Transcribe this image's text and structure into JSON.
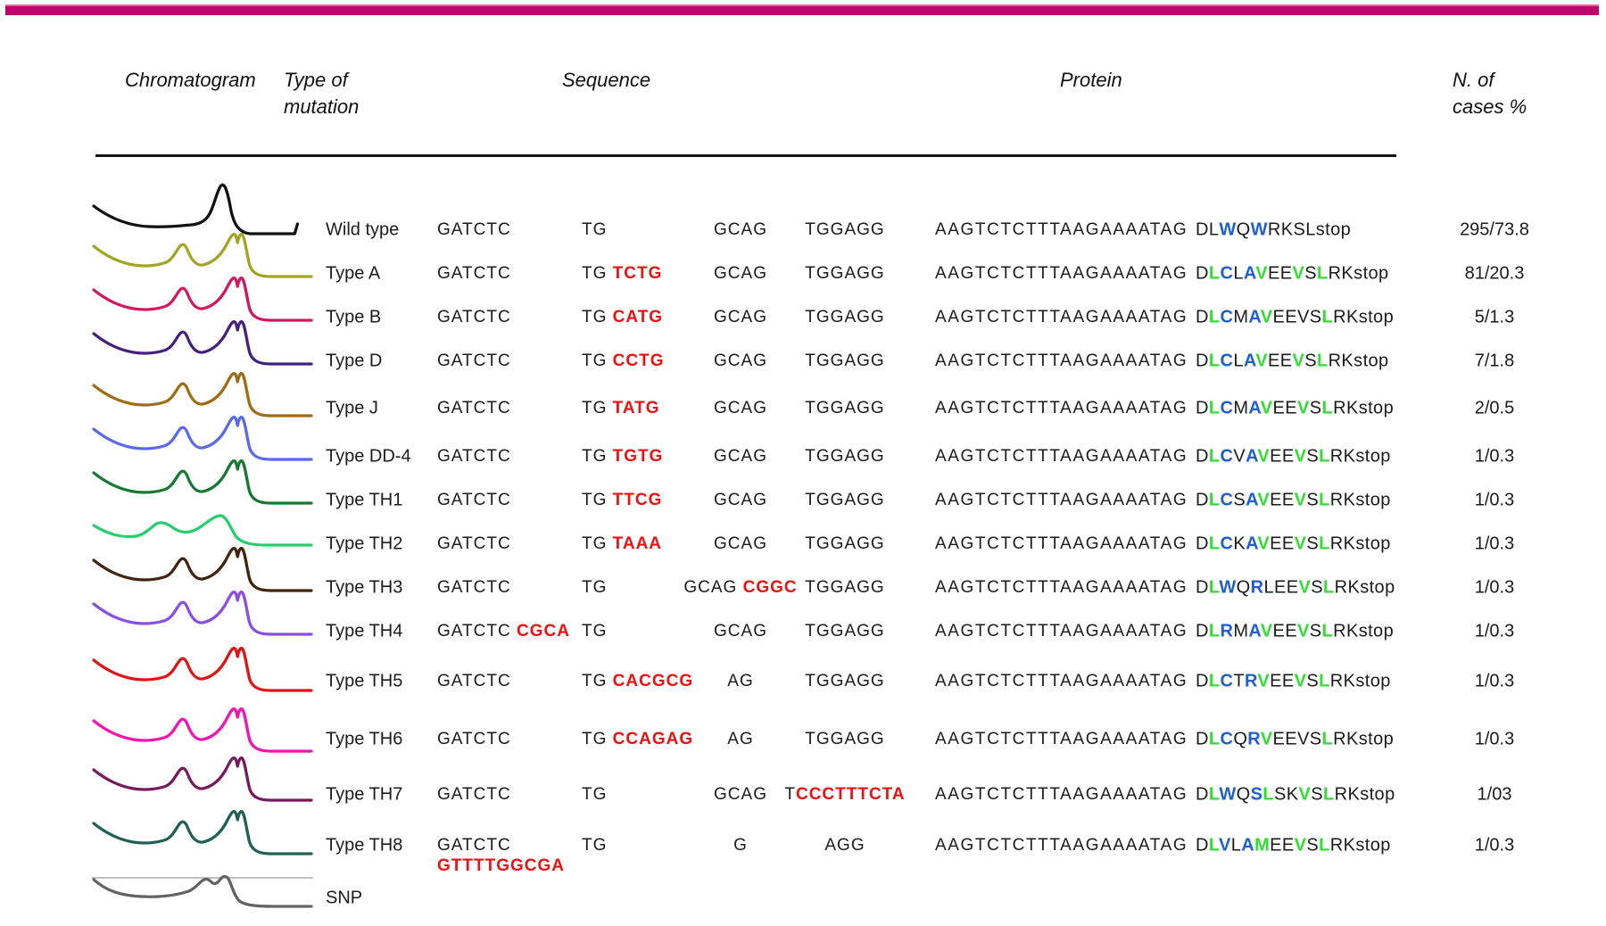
{
  "accent": {
    "top_bar_color": "#c2026b"
  },
  "headers": {
    "chromatogram": "Chromatogram",
    "type_of_mutation": "Type of\nmutation",
    "sequence": "Sequence",
    "protein": "Protein",
    "n_of_cases": "N. of\ncases %"
  },
  "style_colors": {
    "sequence_insert_red": "#ee1111",
    "protein_black": "#1b1b1b",
    "protein_blue": "#1e5fd2",
    "protein_green": "#2fdf2f",
    "snp_reference_line": "#9a9a9a"
  },
  "rows": [
    {
      "type_label": "Wild type",
      "trace_color": "#111111",
      "trace_shape": "single",
      "seq": [
        [
          {
            "t": "GATCTC"
          }
        ],
        [
          {
            "t": "TG"
          }
        ],
        [
          {
            "t": "GCAG"
          }
        ],
        [
          {
            "t": "TGGAGG"
          }
        ],
        [
          {
            "t": "AAGTCTCTTTAAGAAAATAG"
          }
        ]
      ],
      "protein": [
        [
          "D",
          "k"
        ],
        [
          "L",
          "k"
        ],
        [
          "W",
          "b"
        ],
        [
          "Q",
          "k"
        ],
        [
          "W",
          "b"
        ],
        [
          "R",
          "k"
        ],
        [
          "K",
          "k"
        ],
        [
          "S",
          "k"
        ],
        [
          "L",
          "k"
        ],
        [
          "stop",
          "k"
        ]
      ],
      "cases": "295/73.8"
    },
    {
      "type_label": "Type A",
      "trace_color": "#a3a421",
      "trace_shape": "twopeak",
      "seq": [
        [
          {
            "t": "GATCTC"
          }
        ],
        [
          {
            "t": "TG"
          },
          {
            "t": "TCTG",
            "red": true
          }
        ],
        [
          {
            "t": "GCAG"
          }
        ],
        [
          {
            "t": "TGGAGG"
          }
        ],
        [
          {
            "t": "AAGTCTCTTTAAGAAAATAG"
          }
        ]
      ],
      "protein": [
        [
          "D",
          "k"
        ],
        [
          "L",
          "g"
        ],
        [
          "C",
          "b"
        ],
        [
          "L",
          "k"
        ],
        [
          "A",
          "b"
        ],
        [
          "V",
          "g"
        ],
        [
          "E",
          "k"
        ],
        [
          "E",
          "k"
        ],
        [
          "V",
          "g"
        ],
        [
          "S",
          "k"
        ],
        [
          "L",
          "g"
        ],
        [
          "R",
          "k"
        ],
        [
          "K",
          "k"
        ],
        [
          "stop",
          "k"
        ]
      ],
      "cases": "81/20.3"
    },
    {
      "type_label": "Type B",
      "trace_color": "#d4175e",
      "trace_shape": "twopeak",
      "seq": [
        [
          {
            "t": "GATCTC"
          }
        ],
        [
          {
            "t": "TG"
          },
          {
            "t": "CATG",
            "red": true
          }
        ],
        [
          {
            "t": "GCAG"
          }
        ],
        [
          {
            "t": "TGGAGG"
          }
        ],
        [
          {
            "t": "AAGTCTCTTTAAGAAAATAG"
          }
        ]
      ],
      "protein": [
        [
          "D",
          "k"
        ],
        [
          "L",
          "g"
        ],
        [
          "C",
          "b"
        ],
        [
          "M",
          "k"
        ],
        [
          "A",
          "b"
        ],
        [
          "V",
          "g"
        ],
        [
          "E",
          "k"
        ],
        [
          "E",
          "k"
        ],
        [
          "V",
          "k"
        ],
        [
          "S",
          "k"
        ],
        [
          "L",
          "g"
        ],
        [
          "R",
          "k"
        ],
        [
          "K",
          "k"
        ],
        [
          "stop",
          "k"
        ]
      ],
      "cases": "5/1.3"
    },
    {
      "type_label": "Type D",
      "trace_color": "#46207f",
      "trace_shape": "twopeak",
      "seq": [
        [
          {
            "t": "GATCTC"
          }
        ],
        [
          {
            "t": "TG"
          },
          {
            "t": "CCTG",
            "red": true
          }
        ],
        [
          {
            "t": "GCAG"
          }
        ],
        [
          {
            "t": "TGGAGG"
          }
        ],
        [
          {
            "t": "AAGTCTCTTTAAGAAAATAG"
          }
        ]
      ],
      "protein": [
        [
          "D",
          "k"
        ],
        [
          "L",
          "g"
        ],
        [
          "C",
          "b"
        ],
        [
          "L",
          "k"
        ],
        [
          "A",
          "b"
        ],
        [
          "V",
          "g"
        ],
        [
          "E",
          "k"
        ],
        [
          "E",
          "k"
        ],
        [
          "V",
          "g"
        ],
        [
          "S",
          "k"
        ],
        [
          "L",
          "g"
        ],
        [
          "R",
          "k"
        ],
        [
          "K",
          "k"
        ],
        [
          "stop",
          "k"
        ]
      ],
      "cases": "7/1.8"
    },
    {
      "type_label": "Type J",
      "trace_color": "#a06b12",
      "trace_shape": "twopeak",
      "seq": [
        [
          {
            "t": "GATCTC"
          }
        ],
        [
          {
            "t": "TG"
          },
          {
            "t": "TATG",
            "red": true
          }
        ],
        [
          {
            "t": "GCAG"
          }
        ],
        [
          {
            "t": "TGGAGG"
          }
        ],
        [
          {
            "t": "AAGTCTCTTTAAGAAAATAG"
          }
        ]
      ],
      "protein": [
        [
          "D",
          "k"
        ],
        [
          "L",
          "g"
        ],
        [
          "C",
          "b"
        ],
        [
          "M",
          "k"
        ],
        [
          "A",
          "b"
        ],
        [
          "V",
          "g"
        ],
        [
          "E",
          "k"
        ],
        [
          "E",
          "k"
        ],
        [
          "V",
          "g"
        ],
        [
          "S",
          "k"
        ],
        [
          "L",
          "g"
        ],
        [
          "R",
          "k"
        ],
        [
          "K",
          "k"
        ],
        [
          "stop",
          "k"
        ]
      ],
      "cases": "2/0.5"
    },
    {
      "type_label": "Type DD-4",
      "trace_color": "#5a68ea",
      "trace_shape": "twopeak",
      "seq": [
        [
          {
            "t": "GATCTC"
          }
        ],
        [
          {
            "t": "TG"
          },
          {
            "t": "TGTG",
            "red": true
          }
        ],
        [
          {
            "t": "GCAG"
          }
        ],
        [
          {
            "t": "TGGAGG"
          }
        ],
        [
          {
            "t": "AAGTCTCTTTAAGAAAATAG"
          }
        ]
      ],
      "protein": [
        [
          "D",
          "k"
        ],
        [
          "L",
          "g"
        ],
        [
          "C",
          "b"
        ],
        [
          "V",
          "k"
        ],
        [
          "A",
          "b"
        ],
        [
          "V",
          "g"
        ],
        [
          "E",
          "k"
        ],
        [
          "E",
          "k"
        ],
        [
          "V",
          "g"
        ],
        [
          "S",
          "k"
        ],
        [
          "L",
          "g"
        ],
        [
          "R",
          "k"
        ],
        [
          "K",
          "k"
        ],
        [
          "stop",
          "k"
        ]
      ],
      "cases": "1/0.3"
    },
    {
      "type_label": "Type TH1",
      "trace_color": "#157a31",
      "trace_shape": "twopeak",
      "seq": [
        [
          {
            "t": "GATCTC"
          }
        ],
        [
          {
            "t": "TG"
          },
          {
            "t": "TTCG",
            "red": true
          }
        ],
        [
          {
            "t": "GCAG"
          }
        ],
        [
          {
            "t": "TGGAGG"
          }
        ],
        [
          {
            "t": "AAGTCTCTTTAAGAAAATAG"
          }
        ]
      ],
      "protein": [
        [
          "D",
          "k"
        ],
        [
          "L",
          "g"
        ],
        [
          "C",
          "b"
        ],
        [
          "S",
          "k"
        ],
        [
          "A",
          "b"
        ],
        [
          "V",
          "g"
        ],
        [
          "E",
          "k"
        ],
        [
          "E",
          "k"
        ],
        [
          "V",
          "g"
        ],
        [
          "S",
          "k"
        ],
        [
          "L",
          "g"
        ],
        [
          "R",
          "k"
        ],
        [
          "K",
          "k"
        ],
        [
          "stop",
          "k"
        ]
      ],
      "cases": "1/0.3"
    },
    {
      "type_label": "Type TH2",
      "trace_color": "#23d06b",
      "trace_shape": "broad",
      "seq": [
        [
          {
            "t": "GATCTC"
          }
        ],
        [
          {
            "t": "TG"
          },
          {
            "t": "TAAA",
            "red": true
          }
        ],
        [
          {
            "t": "GCAG"
          }
        ],
        [
          {
            "t": "TGGAGG"
          }
        ],
        [
          {
            "t": "AAGTCTCTTTAAGAAAATAG"
          }
        ]
      ],
      "protein": [
        [
          "D",
          "k"
        ],
        [
          "L",
          "g"
        ],
        [
          "C",
          "b"
        ],
        [
          "K",
          "k"
        ],
        [
          "A",
          "b"
        ],
        [
          "V",
          "g"
        ],
        [
          "E",
          "k"
        ],
        [
          "E",
          "k"
        ],
        [
          "V",
          "g"
        ],
        [
          "S",
          "k"
        ],
        [
          "L",
          "g"
        ],
        [
          "R",
          "k"
        ],
        [
          "K",
          "k"
        ],
        [
          "stop",
          "k"
        ]
      ],
      "cases": "1/0.3"
    },
    {
      "type_label": "Type TH3",
      "trace_color": "#42230d",
      "trace_shape": "twopeak",
      "seq": [
        [
          {
            "t": "GATCTC"
          }
        ],
        [
          {
            "t": "TG"
          }
        ],
        [
          {
            "t": "GCAG"
          },
          {
            "t": "CGGC",
            "red": true
          }
        ],
        [
          {
            "t": "TGGAGG"
          }
        ],
        [
          {
            "t": "AAGTCTCTTTAAGAAAATAG"
          }
        ]
      ],
      "protein": [
        [
          "D",
          "k"
        ],
        [
          "L",
          "g"
        ],
        [
          "W",
          "b"
        ],
        [
          "Q",
          "k"
        ],
        [
          "R",
          "b"
        ],
        [
          "L",
          "k"
        ],
        [
          "E",
          "k"
        ],
        [
          "E",
          "k"
        ],
        [
          "V",
          "g"
        ],
        [
          "S",
          "k"
        ],
        [
          "L",
          "g"
        ],
        [
          "R",
          "k"
        ],
        [
          "K",
          "k"
        ],
        [
          "stop",
          "k"
        ]
      ],
      "cases": "1/0.3"
    },
    {
      "type_label": "Type TH4",
      "trace_color": "#8a4de6",
      "trace_shape": "twopeak",
      "seq": [
        [
          {
            "t": "GATCTC"
          },
          {
            "t": "CGCA",
            "red": true
          }
        ],
        [
          {
            "t": "TG"
          }
        ],
        [
          {
            "t": "GCAG"
          }
        ],
        [
          {
            "t": "TGGAGG"
          }
        ],
        [
          {
            "t": "AAGTCTCTTTAAGAAAATAG"
          }
        ]
      ],
      "protein": [
        [
          "D",
          "k"
        ],
        [
          "L",
          "g"
        ],
        [
          "R",
          "b"
        ],
        [
          "M",
          "k"
        ],
        [
          "A",
          "b"
        ],
        [
          "V",
          "g"
        ],
        [
          "E",
          "k"
        ],
        [
          "E",
          "k"
        ],
        [
          "V",
          "g"
        ],
        [
          "S",
          "k"
        ],
        [
          "L",
          "g"
        ],
        [
          "R",
          "k"
        ],
        [
          "K",
          "k"
        ],
        [
          "stop",
          "k"
        ]
      ],
      "cases": "1/0.3"
    },
    {
      "type_label": "Type TH5",
      "trace_color": "#e51212",
      "trace_shape": "twopeak",
      "seq": [
        [
          {
            "t": "GATCTC"
          }
        ],
        [
          {
            "t": "TG"
          },
          {
            "t": "CACGCG",
            "red": true
          }
        ],
        [
          {
            "t": "AG"
          }
        ],
        [
          {
            "t": "TGGAGG"
          }
        ],
        [
          {
            "t": "AAGTCTCTTTAAGAAAATAG"
          }
        ]
      ],
      "protein": [
        [
          "D",
          "k"
        ],
        [
          "L",
          "g"
        ],
        [
          "C",
          "b"
        ],
        [
          "T",
          "k"
        ],
        [
          "R",
          "b"
        ],
        [
          "V",
          "g"
        ],
        [
          "E",
          "k"
        ],
        [
          "E",
          "k"
        ],
        [
          "V",
          "g"
        ],
        [
          "S",
          "k"
        ],
        [
          "L",
          "g"
        ],
        [
          "R",
          "k"
        ],
        [
          "K",
          "k"
        ],
        [
          "stop",
          "k"
        ]
      ],
      "cases": "1/0.3"
    },
    {
      "type_label": "Type TH6",
      "trace_color": "#f312b2",
      "trace_shape": "twopeak",
      "seq": [
        [
          {
            "t": "GATCTC"
          }
        ],
        [
          {
            "t": "TG"
          },
          {
            "t": "CCAGAG",
            "red": true
          }
        ],
        [
          {
            "t": "AG"
          }
        ],
        [
          {
            "t": "TGGAGG"
          }
        ],
        [
          {
            "t": "AAGTCTCTTTAAGAAAATAG"
          }
        ]
      ],
      "protein": [
        [
          "D",
          "k"
        ],
        [
          "L",
          "g"
        ],
        [
          "C",
          "b"
        ],
        [
          "Q",
          "k"
        ],
        [
          "R",
          "b"
        ],
        [
          "V",
          "g"
        ],
        [
          "E",
          "k"
        ],
        [
          "E",
          "k"
        ],
        [
          "V",
          "k"
        ],
        [
          "S",
          "k"
        ],
        [
          "L",
          "g"
        ],
        [
          "R",
          "k"
        ],
        [
          "K",
          "k"
        ],
        [
          "stop",
          "k"
        ]
      ],
      "cases": "1/0.3"
    },
    {
      "type_label": "Type TH7",
      "trace_color": "#78195e",
      "trace_shape": "twopeak",
      "seq": [
        [
          {
            "t": "GATCTC"
          }
        ],
        [
          {
            "t": "TG"
          }
        ],
        [
          {
            "t": "GCAG"
          }
        ],
        [
          {
            "t": "T"
          },
          {
            "t": "CCCTTTCTA",
            "red": true,
            "joined": true
          }
        ],
        [
          {
            "t": "AAGTCTCTTTAAGAAAATAG"
          }
        ]
      ],
      "protein": [
        [
          "D",
          "k"
        ],
        [
          "L",
          "g"
        ],
        [
          "W",
          "b"
        ],
        [
          "Q",
          "k"
        ],
        [
          "S",
          "b"
        ],
        [
          "L",
          "g"
        ],
        [
          "S",
          "k"
        ],
        [
          "K",
          "k"
        ],
        [
          "V",
          "g"
        ],
        [
          "S",
          "k"
        ],
        [
          "L",
          "g"
        ],
        [
          "R",
          "k"
        ],
        [
          "K",
          "k"
        ],
        [
          "stop",
          "k"
        ]
      ],
      "cases": "1/03"
    },
    {
      "type_label": "Type TH8",
      "trace_color": "#1f6055",
      "trace_shape": "twopeak",
      "seq": [
        [
          {
            "t": "GATCTC"
          },
          {
            "t": "GTTTTGGCGA",
            "red": true,
            "line2": true
          }
        ],
        [
          {
            "t": "TG"
          }
        ],
        [
          {
            "t": "G"
          }
        ],
        [
          {
            "t": "AGG"
          }
        ],
        [
          {
            "t": "AAGTCTCTTTAAGAAAATAG"
          }
        ]
      ],
      "protein": [
        [
          "D",
          "k"
        ],
        [
          "L",
          "g"
        ],
        [
          "V",
          "b"
        ],
        [
          "L",
          "k"
        ],
        [
          "A",
          "b"
        ],
        [
          "M",
          "g"
        ],
        [
          "E",
          "k"
        ],
        [
          "E",
          "k"
        ],
        [
          "V",
          "g"
        ],
        [
          "S",
          "k"
        ],
        [
          "L",
          "g"
        ],
        [
          "R",
          "k"
        ],
        [
          "K",
          "k"
        ],
        [
          "stop",
          "k"
        ]
      ],
      "cases": "1/0.3"
    },
    {
      "type_label": "SNP",
      "trace_color": "#636363",
      "trace_shape": "snp",
      "seq": [
        [],
        [],
        [],
        [],
        []
      ],
      "protein": [],
      "cases": ""
    }
  ]
}
